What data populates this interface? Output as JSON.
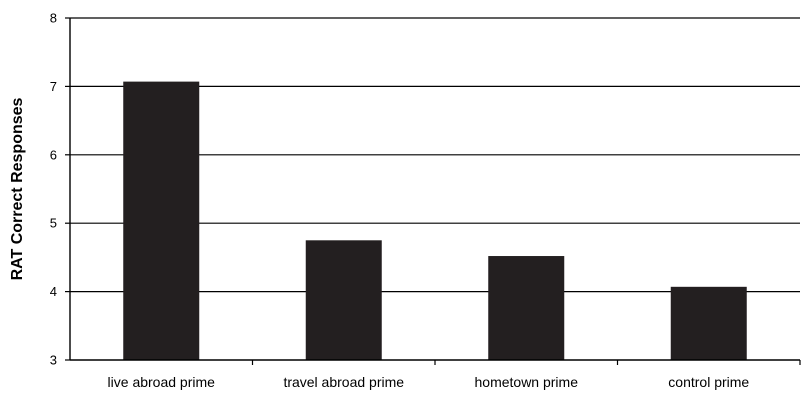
{
  "chart_data": {
    "type": "bar",
    "title": "",
    "xlabel": "",
    "ylabel": "RAT Correct Responses",
    "categories": [
      "live abroad prime",
      "travel abroad prime",
      "hometown prime",
      "control prime"
    ],
    "values": [
      7.07,
      4.75,
      4.52,
      4.07
    ],
    "ylim": [
      3,
      8
    ],
    "yticks": [
      "3",
      "4",
      "5",
      "6",
      "7",
      "8"
    ],
    "grid": true,
    "legend": "none",
    "bar_color": "#231f20",
    "grid_color": "#000000",
    "axis_color": "#000000"
  }
}
